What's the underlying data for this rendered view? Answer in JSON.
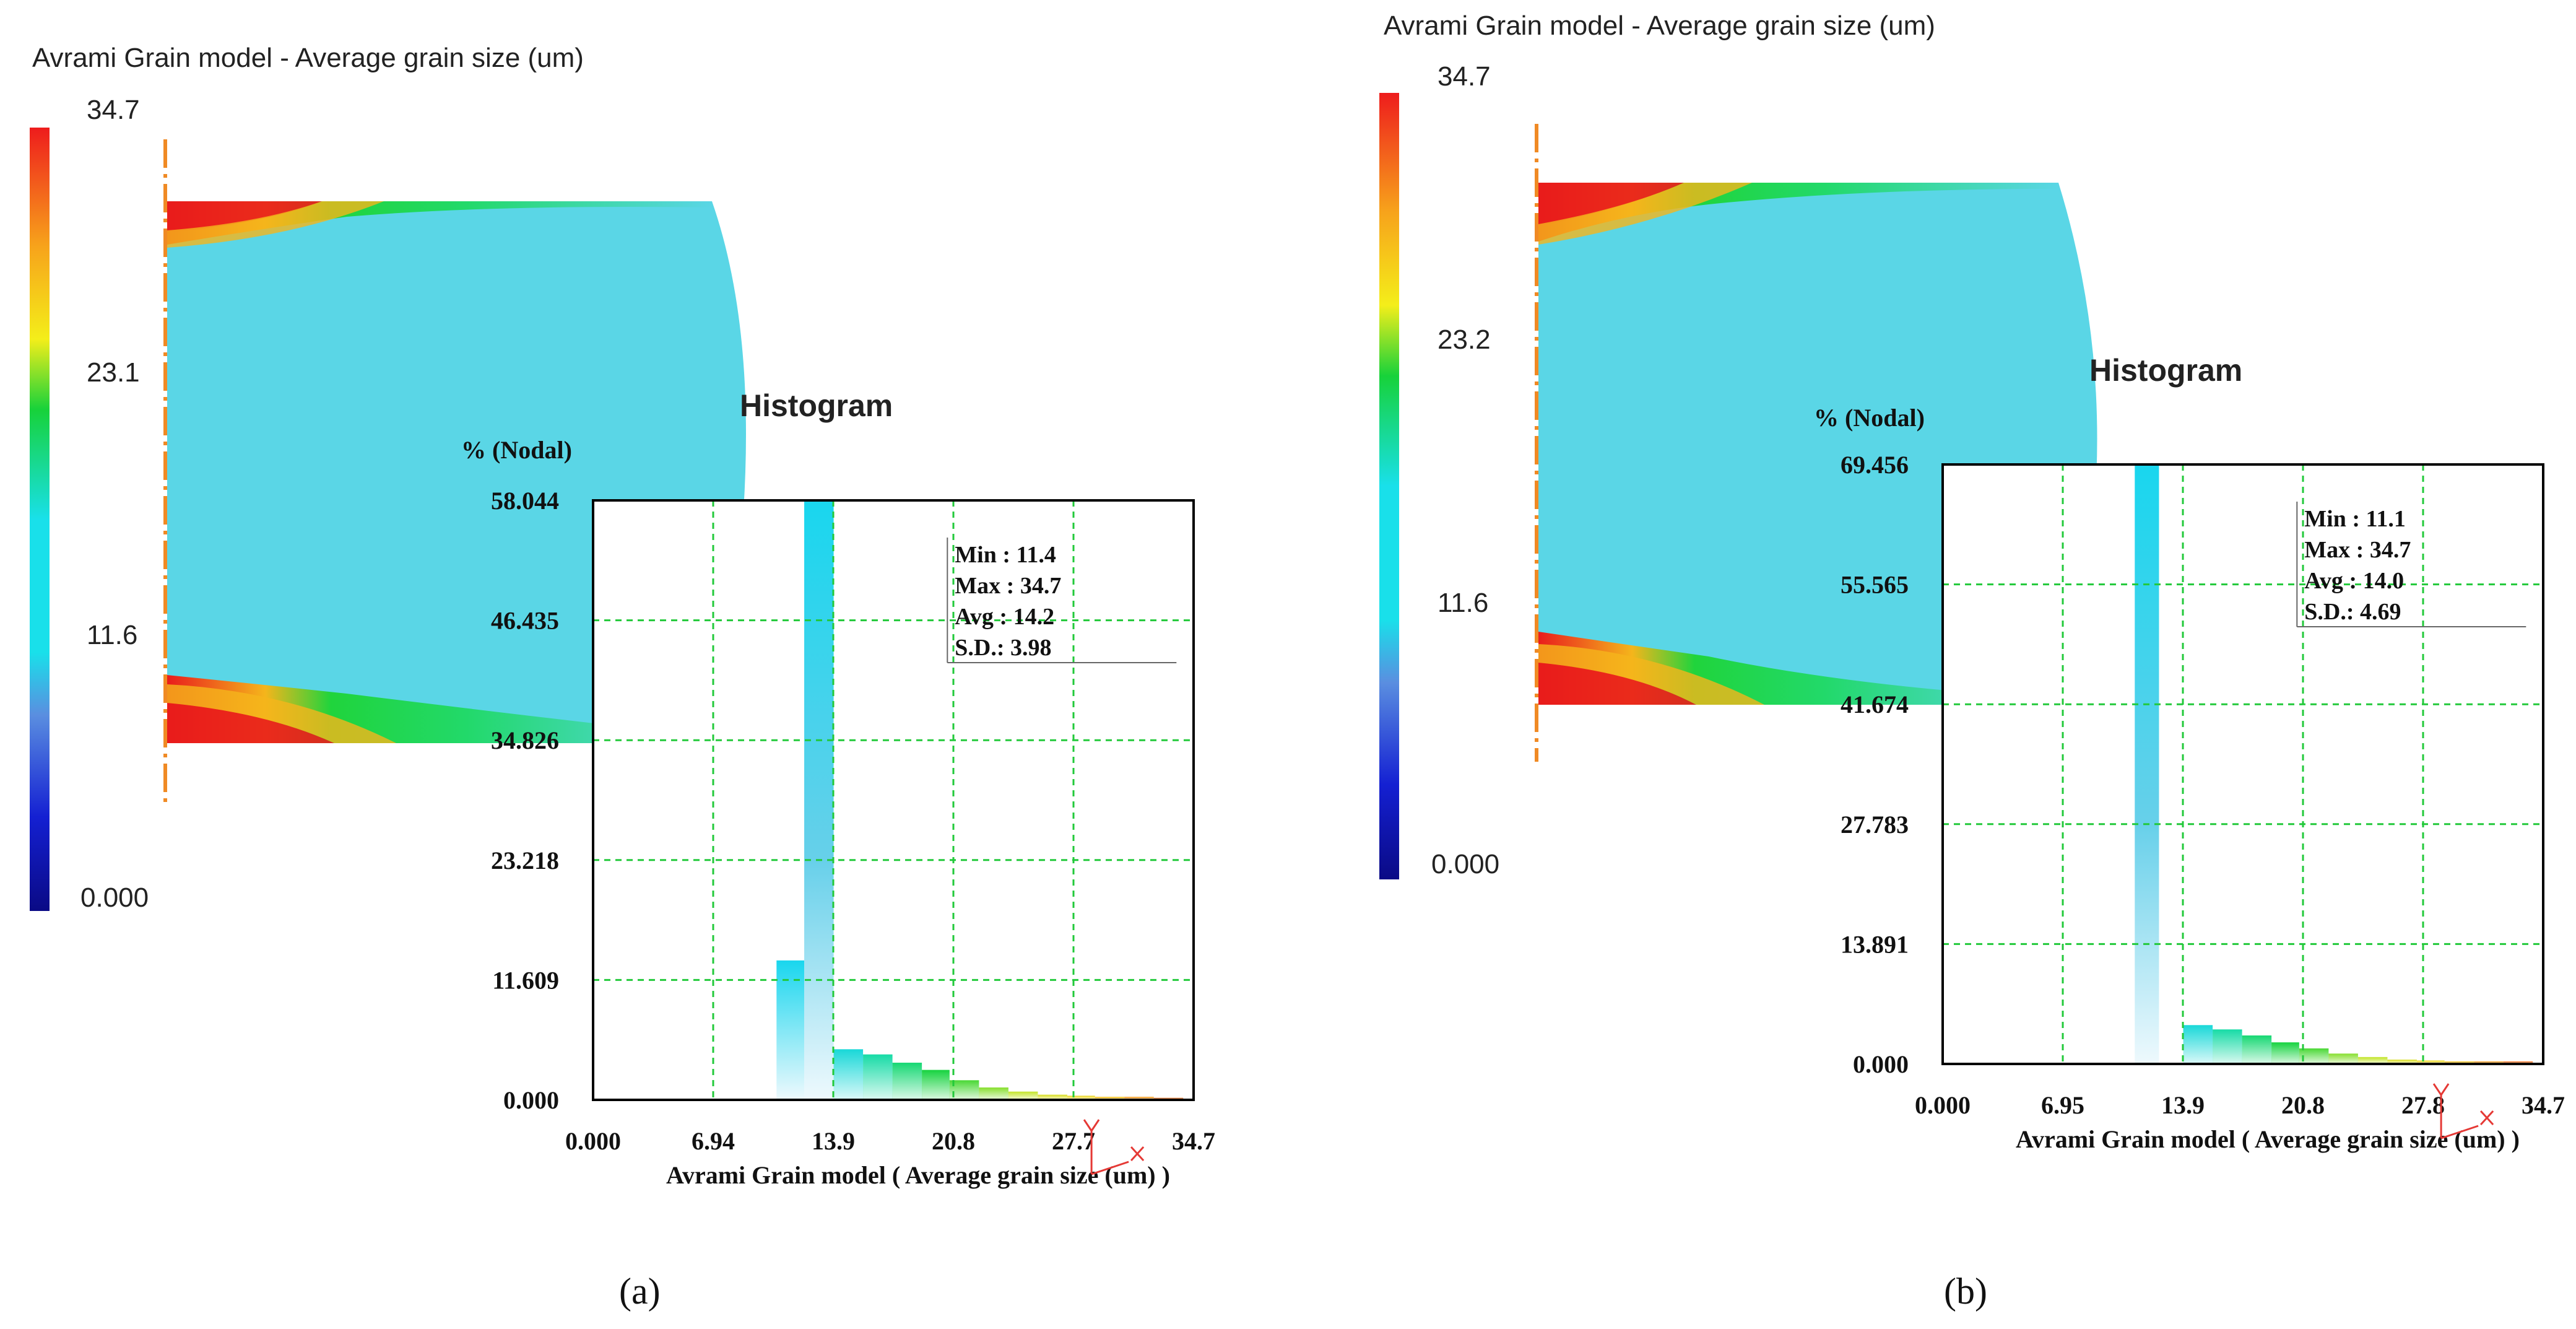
{
  "panels": [
    {
      "label": "(a)",
      "contour_title": "Avrami Grain model - Average grain size (um)",
      "legend_ticks": [
        "34.7",
        "23.1",
        "11.6",
        "0.000"
      ],
      "legend_values": [
        34.7,
        23.1,
        11.6,
        0.0
      ],
      "histogram_title": "Histogram",
      "y_unit_label": "% (Nodal)",
      "y_tick_labels": [
        "58.044",
        "46.435",
        "34.826",
        "23.218",
        "11.609",
        "0.000"
      ],
      "x_tick_labels": [
        "0.000",
        "6.94",
        "13.9",
        "20.8",
        "27.7",
        "34.7"
      ],
      "x_axis_label": "Avrami Grain model ( Average grain size (um) )",
      "stats": [
        "Min : 11.4",
        "Max : 34.7",
        "Avg : 14.2",
        "S.D.: 3.98"
      ]
    },
    {
      "label": "(b)",
      "contour_title": "Avrami Grain model - Average grain size (um)",
      "legend_ticks": [
        "34.7",
        "23.2",
        "11.6",
        "0.000"
      ],
      "legend_values": [
        34.7,
        23.2,
        11.6,
        0.0
      ],
      "histogram_title": "Histogram",
      "y_unit_label": "% (Nodal)",
      "y_tick_labels": [
        "69.456",
        "55.565",
        "41.674",
        "27.783",
        "13.891",
        "0.000"
      ],
      "x_tick_labels": [
        "0.000",
        "6.95",
        "13.9",
        "20.8",
        "27.8",
        "34.7"
      ],
      "x_axis_label": "Avrami Grain model ( Average grain size (um) )",
      "stats": [
        "Min : 11.1",
        "Max : 34.7",
        "Avg : 14.0",
        "S.D.: 4.69"
      ]
    }
  ],
  "colors": {
    "contour_fill": "#5ad6e6",
    "grid": "#22c93a",
    "frame": "#000000",
    "axis_marker": "#e53935",
    "symmetry_line": "#f08a24",
    "colorbar_stops": [
      "#ee1c1c",
      "#f7a21b",
      "#f4ee1a",
      "#17d23a",
      "#19e0ea",
      "#5a8ee0",
      "#1420d2",
      "#0a0a85"
    ]
  },
  "chart_data": [
    {
      "type": "bar",
      "panel": "a",
      "title": "Histogram",
      "xlabel": "Avrami Grain model ( Average grain size (um) )",
      "ylabel": "% (Nodal)",
      "xlim": [
        0,
        34.7
      ],
      "ylim": [
        0,
        58.044
      ],
      "grid": true,
      "bars": [
        {
          "x0": 10.6,
          "x1": 12.2,
          "value": 13.5
        },
        {
          "x0": 12.2,
          "x1": 13.9,
          "value": 58.0
        },
        {
          "x0": 13.9,
          "x1": 15.6,
          "value": 4.9
        },
        {
          "x0": 15.6,
          "x1": 17.3,
          "value": 4.4
        },
        {
          "x0": 17.3,
          "x1": 19.0,
          "value": 3.6
        },
        {
          "x0": 19.0,
          "x1": 20.6,
          "value": 2.9
        },
        {
          "x0": 20.6,
          "x1": 22.3,
          "value": 1.9
        },
        {
          "x0": 22.3,
          "x1": 24.0,
          "value": 1.2
        },
        {
          "x0": 24.0,
          "x1": 25.7,
          "value": 0.8
        },
        {
          "x0": 25.7,
          "x1": 27.4,
          "value": 0.5
        },
        {
          "x0": 27.4,
          "x1": 29.0,
          "value": 0.4
        },
        {
          "x0": 29.0,
          "x1": 30.7,
          "value": 0.3
        },
        {
          "x0": 30.7,
          "x1": 32.4,
          "value": 0.3
        },
        {
          "x0": 32.4,
          "x1": 34.1,
          "value": 0.2
        }
      ]
    },
    {
      "type": "bar",
      "panel": "b",
      "title": "Histogram",
      "xlabel": "Avrami Grain model ( Average grain size (um) )",
      "ylabel": "% (Nodal)",
      "xlim": [
        0,
        34.7
      ],
      "ylim": [
        0,
        69.456
      ],
      "grid": true,
      "bars": [
        {
          "x0": 11.1,
          "x1": 12.5,
          "value": 69.4
        },
        {
          "x0": 12.5,
          "x1": 13.9,
          "value": 0.0
        },
        {
          "x0": 13.9,
          "x1": 15.6,
          "value": 4.5
        },
        {
          "x0": 15.6,
          "x1": 17.3,
          "value": 4.0
        },
        {
          "x0": 17.3,
          "x1": 19.0,
          "value": 3.3
        },
        {
          "x0": 19.0,
          "x1": 20.6,
          "value": 2.5
        },
        {
          "x0": 20.6,
          "x1": 22.3,
          "value": 1.8
        },
        {
          "x0": 22.3,
          "x1": 24.0,
          "value": 1.2
        },
        {
          "x0": 24.0,
          "x1": 25.7,
          "value": 0.8
        },
        {
          "x0": 25.7,
          "x1": 27.4,
          "value": 0.5
        },
        {
          "x0": 27.4,
          "x1": 29.0,
          "value": 0.4
        },
        {
          "x0": 29.0,
          "x1": 30.7,
          "value": 0.3
        },
        {
          "x0": 30.7,
          "x1": 32.4,
          "value": 0.3
        },
        {
          "x0": 32.4,
          "x1": 34.1,
          "value": 0.3
        }
      ]
    }
  ]
}
